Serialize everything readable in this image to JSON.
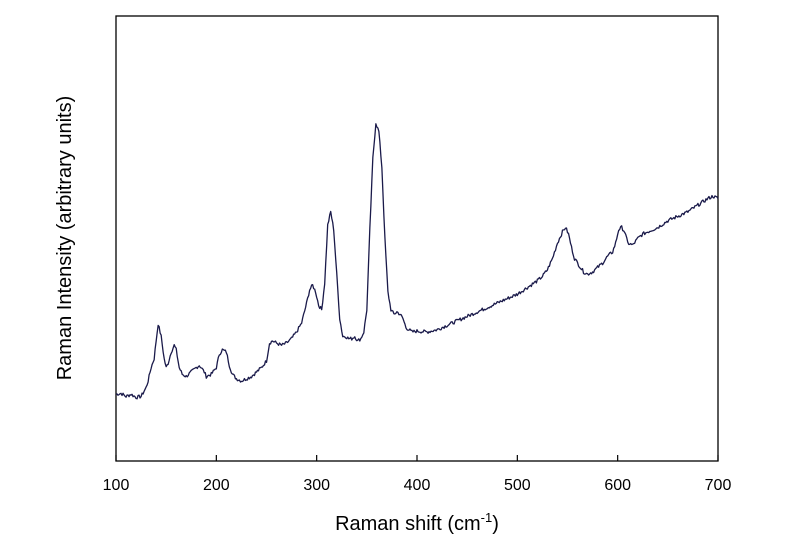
{
  "chart_data": {
    "type": "line",
    "title": "",
    "xlabel": "Raman shift (cm",
    "xlabel_superscript": "-1",
    "xlabel_suffix": ")",
    "ylabel": "Raman Intensity (arbitrary units)",
    "xlim": [
      100,
      700
    ],
    "ylim": [
      0,
      100
    ],
    "xticks": [
      100,
      200,
      300,
      400,
      500,
      600,
      700
    ],
    "yticks_shown": false,
    "grid": false,
    "legend": "none",
    "series": [
      {
        "color": "#1a1a4a",
        "x": [
          100,
          105,
          110,
          115,
          120,
          125,
          130,
          132,
          135,
          138,
          140,
          142,
          145,
          148,
          150,
          152,
          155,
          158,
          160,
          163,
          166,
          170,
          175,
          180,
          183,
          185,
          188,
          190,
          195,
          200,
          203,
          206,
          210,
          213,
          216,
          220,
          225,
          230,
          235,
          240,
          245,
          250,
          253,
          256,
          260,
          265,
          270,
          275,
          280,
          285,
          290,
          293,
          296,
          299,
          302,
          305,
          308,
          311,
          314,
          317,
          320,
          323,
          326,
          329,
          332,
          335,
          338,
          341,
          344,
          347,
          350,
          353,
          356,
          359,
          362,
          365,
          368,
          371,
          374,
          377,
          380,
          383,
          386,
          389,
          392,
          395,
          400,
          410,
          420,
          430,
          440,
          450,
          460,
          470,
          480,
          490,
          500,
          510,
          520,
          525,
          530,
          535,
          540,
          545,
          548,
          551,
          554,
          557,
          560,
          563,
          566,
          570,
          575,
          580,
          585,
          590,
          595,
          598,
          601,
          604,
          607,
          610,
          615,
          620,
          625,
          630,
          640,
          650,
          660,
          670,
          680,
          690,
          695,
          700
        ],
        "y": [
          15.0,
          15.2,
          14.5,
          15.0,
          14.3,
          14.5,
          16.5,
          18.0,
          21.0,
          23.0,
          27.0,
          30.8,
          28.0,
          23.0,
          21.0,
          22.0,
          24.5,
          26.0,
          25.0,
          21.0,
          19.5,
          19.0,
          20.0,
          21.0,
          21.5,
          21.0,
          20.0,
          19.0,
          19.5,
          21.0,
          24.0,
          25.0,
          24.5,
          21.5,
          19.5,
          18.5,
          18.0,
          18.5,
          19.0,
          20.0,
          21.0,
          22.5,
          26.5,
          27.0,
          26.5,
          26.0,
          26.5,
          27.5,
          29.0,
          31.0,
          35.5,
          38.5,
          39.5,
          38.0,
          35.0,
          34.0,
          40.0,
          53.0,
          56.0,
          52.0,
          42.0,
          32.0,
          28.0,
          28.0,
          27.5,
          27.5,
          28.0,
          27.0,
          27.5,
          29.0,
          34.0,
          52.0,
          68.0,
          76.0,
          74.0,
          66.0,
          50.0,
          38.0,
          34.0,
          33.0,
          33.5,
          33.0,
          32.0,
          30.0,
          29.5,
          29.0,
          29.2,
          29.0,
          29.5,
          30.5,
          31.5,
          32.5,
          33.5,
          34.5,
          35.5,
          36.5,
          37.5,
          39.0,
          40.5,
          41.5,
          43.0,
          45.5,
          49.0,
          51.5,
          52.5,
          51.0,
          48.0,
          45.5,
          44.5,
          43.5,
          42.5,
          42.0,
          42.5,
          43.5,
          44.5,
          46.0,
          47.0,
          49.0,
          52.0,
          52.5,
          51.5,
          49.0,
          48.5,
          50.0,
          51.0,
          51.5,
          52.5,
          54.0,
          55.0,
          56.0,
          57.5,
          59.0,
          59.5,
          59.0
        ]
      }
    ]
  }
}
